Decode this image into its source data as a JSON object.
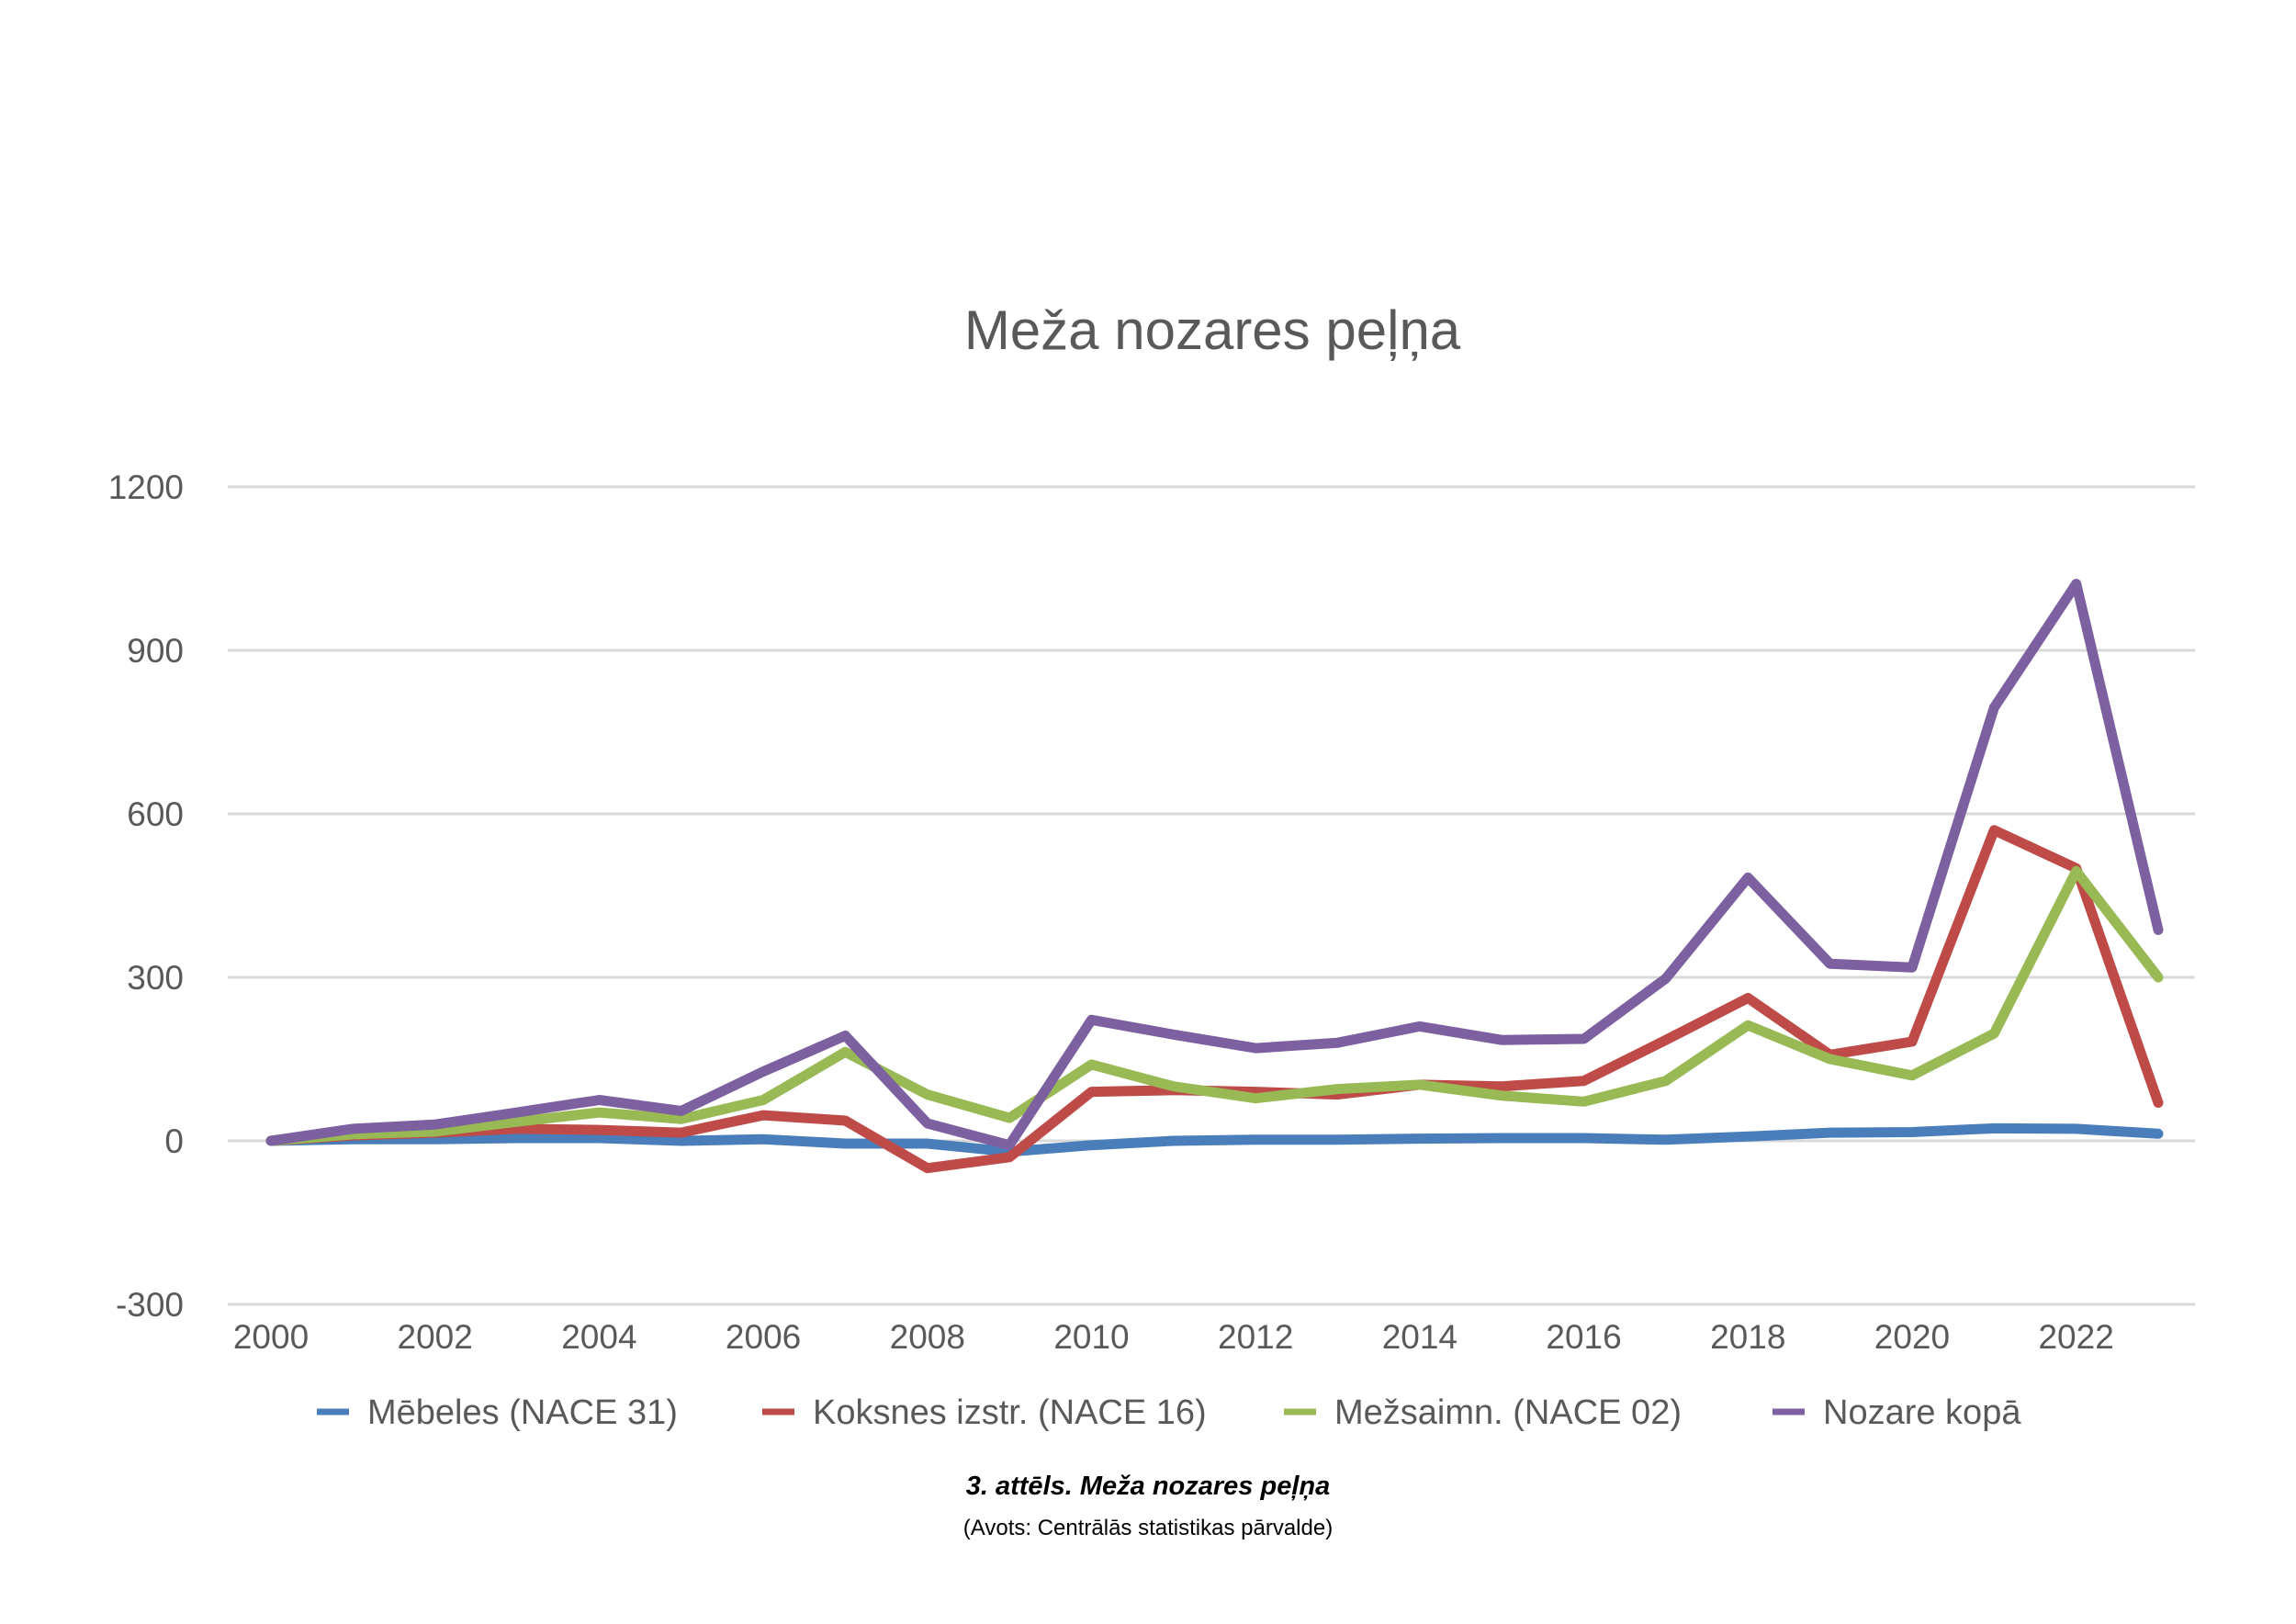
{
  "chart_data": {
    "type": "line",
    "title": "Meža nozares peļņa",
    "x": [
      2000,
      2001,
      2002,
      2003,
      2004,
      2005,
      2006,
      2007,
      2008,
      2009,
      2010,
      2011,
      2012,
      2013,
      2014,
      2015,
      2016,
      2017,
      2018,
      2019,
      2020,
      2021,
      2022,
      2023
    ],
    "x_ticks": [
      "2000",
      "2002",
      "2004",
      "2006",
      "2008",
      "2010",
      "2012",
      "2014",
      "2016",
      "2018",
      "2020",
      "2022"
    ],
    "y_ticks": [
      "-300",
      "0",
      "300",
      "600",
      "900",
      "1200"
    ],
    "ylim": [
      -300,
      1200
    ],
    "grid": "horizontal",
    "legend_position": "bottom",
    "series": [
      {
        "name": "Mēbeles (NACE 31)",
        "color": "#4a7ebb",
        "values": [
          0,
          3,
          3,
          5,
          5,
          0,
          3,
          -5,
          -5,
          -20,
          -8,
          0,
          2,
          2,
          4,
          5,
          5,
          2,
          8,
          15,
          16,
          23,
          22,
          13
        ]
      },
      {
        "name": "Koksnes izstr. (NACE 16)",
        "color": "#be4b48",
        "values": [
          0,
          10,
          15,
          22,
          20,
          15,
          47,
          37,
          -50,
          -30,
          90,
          93,
          90,
          85,
          103,
          100,
          110,
          185,
          262,
          158,
          182,
          570,
          500,
          70
        ]
      },
      {
        "name": "Mežsaimn. (NACE 02)",
        "color": "#98b954",
        "values": [
          0,
          12,
          17,
          35,
          52,
          40,
          75,
          163,
          85,
          42,
          140,
          100,
          78,
          95,
          103,
          83,
          72,
          110,
          212,
          150,
          120,
          197,
          495,
          300
        ]
      },
      {
        "name": "Nozare kopā",
        "color": "#7d60a0",
        "values": [
          0,
          22,
          30,
          52,
          75,
          55,
          127,
          193,
          32,
          -8,
          222,
          195,
          170,
          180,
          210,
          185,
          187,
          298,
          483,
          325,
          318,
          795,
          1022,
          387
        ]
      }
    ]
  },
  "caption": {
    "title": "3. attēls. Meža nozares peļņa",
    "source": "(Avots: Centrālās statistikas pārvalde)"
  }
}
